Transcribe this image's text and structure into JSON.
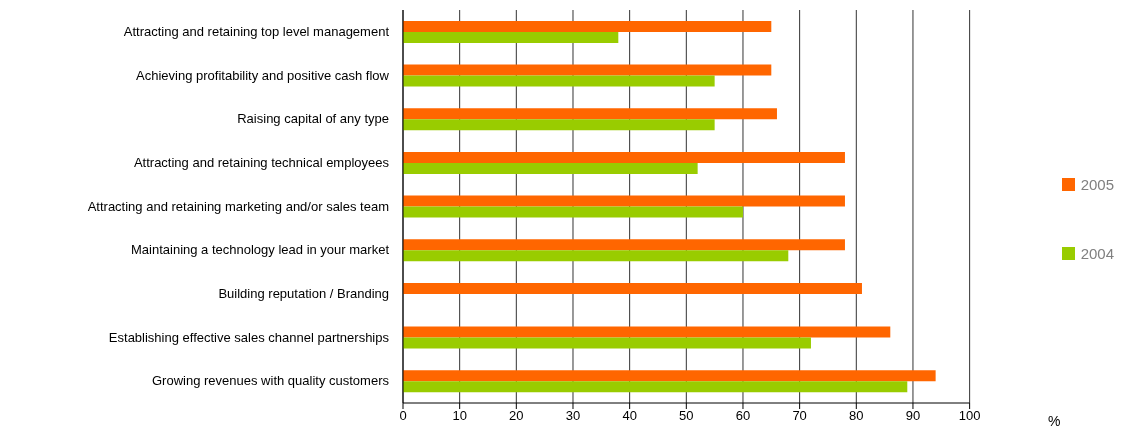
{
  "chart_data": {
    "type": "bar",
    "orientation": "horizontal",
    "xlabel": "%",
    "categories": [
      "Attracting and retaining top level management",
      "Achieving profitability and positive cash flow",
      "Raising capital of any type",
      "Attracting and retaining technical employees",
      "Attracting and retaining marketing and/or sales team",
      "Maintaining a technology lead in your market",
      "Building reputation / Branding",
      "Establishing effective sales channel partnerships",
      "Growing revenues with quality customers"
    ],
    "series": [
      {
        "name": "2005",
        "color": "#ff6600",
        "values": [
          65,
          65,
          66,
          78,
          78,
          78,
          81,
          86,
          94
        ]
      },
      {
        "name": "2004",
        "color": "#99cc00",
        "values": [
          38,
          55,
          55,
          52,
          60,
          68,
          null,
          72,
          89
        ]
      }
    ],
    "xlim": [
      0,
      100
    ],
    "xticks": [
      0,
      10,
      20,
      30,
      40,
      50,
      60,
      70,
      80,
      90,
      100
    ],
    "grid": "x",
    "legend": "right"
  }
}
